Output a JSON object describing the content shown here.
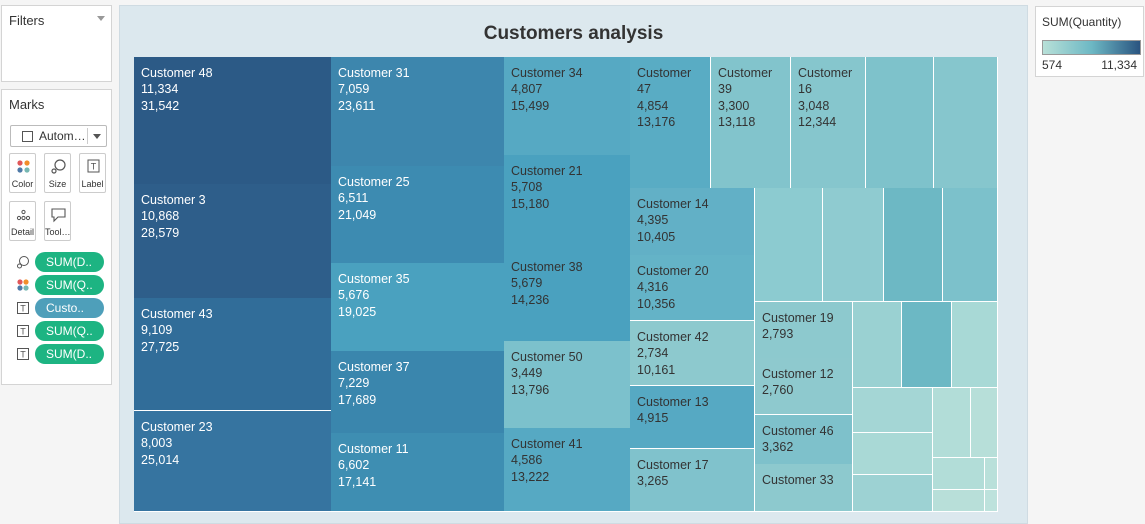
{
  "filters": {
    "title": "Filters"
  },
  "marks": {
    "title": "Marks",
    "mark_type": "Autom…",
    "buttons": [
      {
        "label": "Color",
        "icon": "color-icon"
      },
      {
        "label": "Size",
        "icon": "size-icon"
      },
      {
        "label": "Label",
        "icon": "label-icon"
      },
      {
        "label": "Detail",
        "icon": "detail-icon"
      },
      {
        "label": "Tool…",
        "icon": "tooltip-icon"
      }
    ],
    "pills": [
      {
        "icon": "size-icon",
        "label": "SUM(D..",
        "color": "#1db482"
      },
      {
        "icon": "color-icon",
        "label": "SUM(Q..",
        "color": "#1db482"
      },
      {
        "icon": "label-icon",
        "label": "Custo..",
        "color": "#4e9fba"
      },
      {
        "icon": "label-icon",
        "label": "SUM(Q..",
        "color": "#1db482"
      },
      {
        "icon": "label-icon",
        "label": "SUM(D..",
        "color": "#1db482"
      }
    ]
  },
  "legend": {
    "title": "SUM(Quantity)",
    "min": "574",
    "max": "11,334",
    "color_low": "#b8e0d8",
    "color_high": "#2a5480"
  },
  "chart_data": {
    "type": "treemap",
    "title": "Customers analysis",
    "size_measure": "SUM(Discount)",
    "color_measure": "SUM(Quantity)",
    "items": [
      {
        "name": "Customer 48",
        "quantity": "11,334",
        "discount": "31,542"
      },
      {
        "name": "Customer 3",
        "quantity": "10,868",
        "discount": "28,579"
      },
      {
        "name": "Customer 43",
        "quantity": "9,109",
        "discount": "27,725"
      },
      {
        "name": "Customer 23",
        "quantity": "8,003",
        "discount": "25,014"
      },
      {
        "name": "Customer 31",
        "quantity": "7,059",
        "discount": "23,611"
      },
      {
        "name": "Customer 25",
        "quantity": "6,511",
        "discount": "21,049"
      },
      {
        "name": "Customer 35",
        "quantity": "5,676",
        "discount": "19,025"
      },
      {
        "name": "Customer 37",
        "quantity": "7,229",
        "discount": "17,689"
      },
      {
        "name": "Customer 11",
        "quantity": "6,602",
        "discount": "17,141"
      },
      {
        "name": "Customer 34",
        "quantity": "4,807",
        "discount": "15,499"
      },
      {
        "name": "Customer 21",
        "quantity": "5,708",
        "discount": "15,180"
      },
      {
        "name": "Customer 38",
        "quantity": "5,679",
        "discount": "14,236"
      },
      {
        "name": "Customer 50",
        "quantity": "3,449",
        "discount": "13,796"
      },
      {
        "name": "Customer 41",
        "quantity": "4,586",
        "discount": "13,222"
      },
      {
        "name": "Customer\n47",
        "quantity": "4,854",
        "discount": "13,176"
      },
      {
        "name": "Customer\n39",
        "quantity": "3,300",
        "discount": "13,118"
      },
      {
        "name": "Customer\n16",
        "quantity": "3,048",
        "discount": "12,344"
      },
      {
        "name": "Customer 14",
        "quantity": "4,395",
        "discount": "10,405"
      },
      {
        "name": "Customer 20",
        "quantity": "4,316",
        "discount": "10,356"
      },
      {
        "name": "Customer 42",
        "quantity": "2,734",
        "discount": "10,161"
      },
      {
        "name": "Customer 13",
        "quantity": "4,915",
        "discount": ""
      },
      {
        "name": "Customer 17",
        "quantity": "3,265",
        "discount": ""
      },
      {
        "name": "Customer 19",
        "quantity": "2,793",
        "discount": ""
      },
      {
        "name": "Customer 12",
        "quantity": "2,760",
        "discount": ""
      },
      {
        "name": "Customer 46",
        "quantity": "3,362",
        "discount": ""
      },
      {
        "name": "Customer 33",
        "quantity": "",
        "discount": ""
      },
      {
        "name": "",
        "quantity": "",
        "discount": ""
      },
      {
        "name": "",
        "quantity": "",
        "discount": ""
      },
      {
        "name": "",
        "quantity": "",
        "discount": ""
      },
      {
        "name": "",
        "quantity": "",
        "discount": ""
      },
      {
        "name": "",
        "quantity": "",
        "discount": ""
      },
      {
        "name": "",
        "quantity": "",
        "discount": ""
      },
      {
        "name": "",
        "quantity": "",
        "discount": ""
      },
      {
        "name": "",
        "quantity": "",
        "discount": ""
      },
      {
        "name": "",
        "quantity": "",
        "discount": ""
      },
      {
        "name": "",
        "quantity": "",
        "discount": ""
      },
      {
        "name": "",
        "quantity": "",
        "discount": ""
      },
      {
        "name": "",
        "quantity": "",
        "discount": ""
      },
      {
        "name": "",
        "quantity": "",
        "discount": ""
      },
      {
        "name": "",
        "quantity": "",
        "discount": ""
      },
      {
        "name": "",
        "quantity": "",
        "discount": ""
      },
      {
        "name": "",
        "quantity": "",
        "discount": ""
      },
      {
        "name": "",
        "quantity": "",
        "discount": ""
      },
      {
        "name": "",
        "quantity": "",
        "discount": ""
      }
    ]
  }
}
